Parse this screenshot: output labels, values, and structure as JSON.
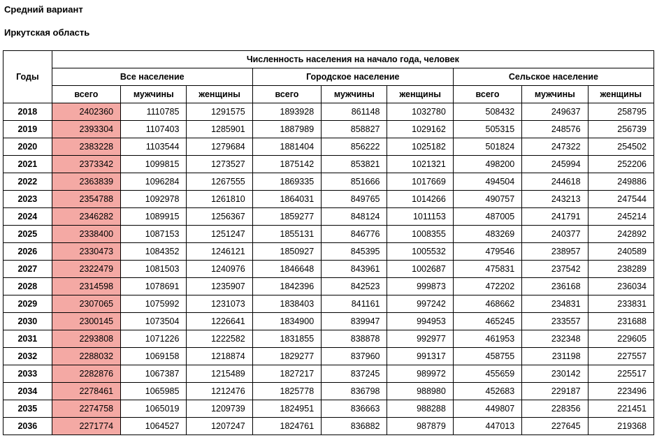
{
  "header": {
    "variant": "Средний вариант",
    "region": "Иркутская область",
    "main_title": "Численность населения на начало года, человек",
    "years_label": "Годы",
    "groups": [
      "Все население",
      "Городское население",
      "Сельское население"
    ],
    "sub": [
      "всего",
      "мужчины",
      "женщины"
    ]
  },
  "styling": {
    "highlight_color": "#f4a9a4",
    "border_color": "#000000",
    "faint_border": "#d0d0d0",
    "background": "#ffffff",
    "font_family": "Arial",
    "header_fontsize": 13,
    "cell_fontsize": 12.5,
    "highlight_column_index": 0
  },
  "rows": [
    {
      "year": "2018",
      "c": [
        2402360,
        1110785,
        1291575,
        1893928,
        861148,
        1032780,
        508432,
        249637,
        258795
      ]
    },
    {
      "year": "2019",
      "c": [
        2393304,
        1107403,
        1285901,
        1887989,
        858827,
        1029162,
        505315,
        248576,
        256739
      ]
    },
    {
      "year": "2020",
      "c": [
        2383228,
        1103544,
        1279684,
        1881404,
        856222,
        1025182,
        501824,
        247322,
        254502
      ]
    },
    {
      "year": "2021",
      "c": [
        2373342,
        1099815,
        1273527,
        1875142,
        853821,
        1021321,
        498200,
        245994,
        252206
      ]
    },
    {
      "year": "2022",
      "c": [
        2363839,
        1096284,
        1267555,
        1869335,
        851666,
        1017669,
        494504,
        244618,
        249886
      ]
    },
    {
      "year": "2023",
      "c": [
        2354788,
        1092978,
        1261810,
        1864031,
        849765,
        1014266,
        490757,
        243213,
        247544
      ]
    },
    {
      "year": "2024",
      "c": [
        2346282,
        1089915,
        1256367,
        1859277,
        848124,
        1011153,
        487005,
        241791,
        245214
      ]
    },
    {
      "year": "2025",
      "c": [
        2338400,
        1087153,
        1251247,
        1855131,
        846776,
        1008355,
        483269,
        240377,
        242892
      ]
    },
    {
      "year": "2026",
      "c": [
        2330473,
        1084352,
        1246121,
        1850927,
        845395,
        1005532,
        479546,
        238957,
        240589
      ]
    },
    {
      "year": "2027",
      "c": [
        2322479,
        1081503,
        1240976,
        1846648,
        843961,
        1002687,
        475831,
        237542,
        238289
      ]
    },
    {
      "year": "2028",
      "c": [
        2314598,
        1078691,
        1235907,
        1842396,
        842523,
        999873,
        472202,
        236168,
        236034
      ]
    },
    {
      "year": "2029",
      "c": [
        2307065,
        1075992,
        1231073,
        1838403,
        841161,
        997242,
        468662,
        234831,
        233831
      ]
    },
    {
      "year": "2030",
      "c": [
        2300145,
        1073504,
        1226641,
        1834900,
        839947,
        994953,
        465245,
        233557,
        231688
      ]
    },
    {
      "year": "2031",
      "c": [
        2293808,
        1071226,
        1222582,
        1831855,
        838878,
        992977,
        461953,
        232348,
        229605
      ]
    },
    {
      "year": "2032",
      "c": [
        2288032,
        1069158,
        1218874,
        1829277,
        837960,
        991317,
        458755,
        231198,
        227557
      ]
    },
    {
      "year": "2033",
      "c": [
        2282876,
        1067387,
        1215489,
        1827217,
        837245,
        989972,
        455659,
        230142,
        225517
      ]
    },
    {
      "year": "2034",
      "c": [
        2278461,
        1065985,
        1212476,
        1825778,
        836798,
        988980,
        452683,
        229187,
        223496
      ]
    },
    {
      "year": "2035",
      "c": [
        2274758,
        1065019,
        1209739,
        1824951,
        836663,
        988288,
        449807,
        228356,
        221451
      ]
    },
    {
      "year": "2036",
      "c": [
        2271774,
        1064527,
        1207247,
        1824761,
        836882,
        987879,
        447013,
        227645,
        219368
      ]
    }
  ]
}
